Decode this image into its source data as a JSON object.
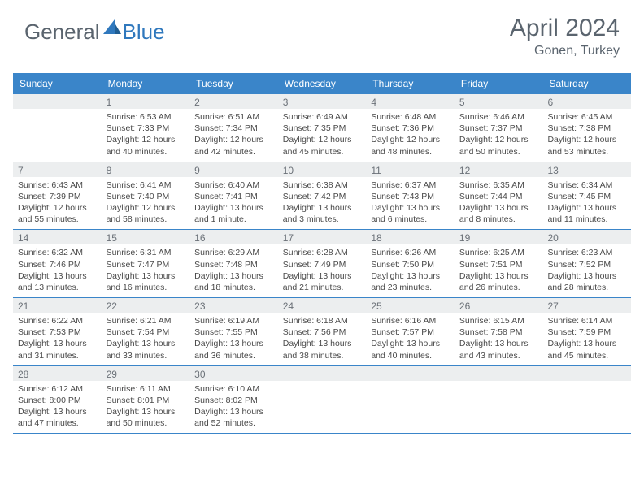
{
  "logo": {
    "text1": "General",
    "text2": "Blue"
  },
  "title": "April 2024",
  "location": "Gonen, Turkey",
  "colors": {
    "header_bg": "#3a85c9",
    "header_text": "#ffffff",
    "daynum_bg": "#eceeef",
    "daynum_text": "#6b7178",
    "body_text": "#4a4a4a",
    "divider": "#3a85c9",
    "logo_gray": "#5a646e",
    "logo_blue": "#2f78bd"
  },
  "day_names": [
    "Sunday",
    "Monday",
    "Tuesday",
    "Wednesday",
    "Thursday",
    "Friday",
    "Saturday"
  ],
  "weeks": [
    [
      {
        "n": "",
        "sr": "",
        "ss": "",
        "dl": ""
      },
      {
        "n": "1",
        "sr": "Sunrise: 6:53 AM",
        "ss": "Sunset: 7:33 PM",
        "dl": "Daylight: 12 hours and 40 minutes."
      },
      {
        "n": "2",
        "sr": "Sunrise: 6:51 AM",
        "ss": "Sunset: 7:34 PM",
        "dl": "Daylight: 12 hours and 42 minutes."
      },
      {
        "n": "3",
        "sr": "Sunrise: 6:49 AM",
        "ss": "Sunset: 7:35 PM",
        "dl": "Daylight: 12 hours and 45 minutes."
      },
      {
        "n": "4",
        "sr": "Sunrise: 6:48 AM",
        "ss": "Sunset: 7:36 PM",
        "dl": "Daylight: 12 hours and 48 minutes."
      },
      {
        "n": "5",
        "sr": "Sunrise: 6:46 AM",
        "ss": "Sunset: 7:37 PM",
        "dl": "Daylight: 12 hours and 50 minutes."
      },
      {
        "n": "6",
        "sr": "Sunrise: 6:45 AM",
        "ss": "Sunset: 7:38 PM",
        "dl": "Daylight: 12 hours and 53 minutes."
      }
    ],
    [
      {
        "n": "7",
        "sr": "Sunrise: 6:43 AM",
        "ss": "Sunset: 7:39 PM",
        "dl": "Daylight: 12 hours and 55 minutes."
      },
      {
        "n": "8",
        "sr": "Sunrise: 6:41 AM",
        "ss": "Sunset: 7:40 PM",
        "dl": "Daylight: 12 hours and 58 minutes."
      },
      {
        "n": "9",
        "sr": "Sunrise: 6:40 AM",
        "ss": "Sunset: 7:41 PM",
        "dl": "Daylight: 13 hours and 1 minute."
      },
      {
        "n": "10",
        "sr": "Sunrise: 6:38 AM",
        "ss": "Sunset: 7:42 PM",
        "dl": "Daylight: 13 hours and 3 minutes."
      },
      {
        "n": "11",
        "sr": "Sunrise: 6:37 AM",
        "ss": "Sunset: 7:43 PM",
        "dl": "Daylight: 13 hours and 6 minutes."
      },
      {
        "n": "12",
        "sr": "Sunrise: 6:35 AM",
        "ss": "Sunset: 7:44 PM",
        "dl": "Daylight: 13 hours and 8 minutes."
      },
      {
        "n": "13",
        "sr": "Sunrise: 6:34 AM",
        "ss": "Sunset: 7:45 PM",
        "dl": "Daylight: 13 hours and 11 minutes."
      }
    ],
    [
      {
        "n": "14",
        "sr": "Sunrise: 6:32 AM",
        "ss": "Sunset: 7:46 PM",
        "dl": "Daylight: 13 hours and 13 minutes."
      },
      {
        "n": "15",
        "sr": "Sunrise: 6:31 AM",
        "ss": "Sunset: 7:47 PM",
        "dl": "Daylight: 13 hours and 16 minutes."
      },
      {
        "n": "16",
        "sr": "Sunrise: 6:29 AM",
        "ss": "Sunset: 7:48 PM",
        "dl": "Daylight: 13 hours and 18 minutes."
      },
      {
        "n": "17",
        "sr": "Sunrise: 6:28 AM",
        "ss": "Sunset: 7:49 PM",
        "dl": "Daylight: 13 hours and 21 minutes."
      },
      {
        "n": "18",
        "sr": "Sunrise: 6:26 AM",
        "ss": "Sunset: 7:50 PM",
        "dl": "Daylight: 13 hours and 23 minutes."
      },
      {
        "n": "19",
        "sr": "Sunrise: 6:25 AM",
        "ss": "Sunset: 7:51 PM",
        "dl": "Daylight: 13 hours and 26 minutes."
      },
      {
        "n": "20",
        "sr": "Sunrise: 6:23 AM",
        "ss": "Sunset: 7:52 PM",
        "dl": "Daylight: 13 hours and 28 minutes."
      }
    ],
    [
      {
        "n": "21",
        "sr": "Sunrise: 6:22 AM",
        "ss": "Sunset: 7:53 PM",
        "dl": "Daylight: 13 hours and 31 minutes."
      },
      {
        "n": "22",
        "sr": "Sunrise: 6:21 AM",
        "ss": "Sunset: 7:54 PM",
        "dl": "Daylight: 13 hours and 33 minutes."
      },
      {
        "n": "23",
        "sr": "Sunrise: 6:19 AM",
        "ss": "Sunset: 7:55 PM",
        "dl": "Daylight: 13 hours and 36 minutes."
      },
      {
        "n": "24",
        "sr": "Sunrise: 6:18 AM",
        "ss": "Sunset: 7:56 PM",
        "dl": "Daylight: 13 hours and 38 minutes."
      },
      {
        "n": "25",
        "sr": "Sunrise: 6:16 AM",
        "ss": "Sunset: 7:57 PM",
        "dl": "Daylight: 13 hours and 40 minutes."
      },
      {
        "n": "26",
        "sr": "Sunrise: 6:15 AM",
        "ss": "Sunset: 7:58 PM",
        "dl": "Daylight: 13 hours and 43 minutes."
      },
      {
        "n": "27",
        "sr": "Sunrise: 6:14 AM",
        "ss": "Sunset: 7:59 PM",
        "dl": "Daylight: 13 hours and 45 minutes."
      }
    ],
    [
      {
        "n": "28",
        "sr": "Sunrise: 6:12 AM",
        "ss": "Sunset: 8:00 PM",
        "dl": "Daylight: 13 hours and 47 minutes."
      },
      {
        "n": "29",
        "sr": "Sunrise: 6:11 AM",
        "ss": "Sunset: 8:01 PM",
        "dl": "Daylight: 13 hours and 50 minutes."
      },
      {
        "n": "30",
        "sr": "Sunrise: 6:10 AM",
        "ss": "Sunset: 8:02 PM",
        "dl": "Daylight: 13 hours and 52 minutes."
      },
      {
        "n": "",
        "sr": "",
        "ss": "",
        "dl": ""
      },
      {
        "n": "",
        "sr": "",
        "ss": "",
        "dl": ""
      },
      {
        "n": "",
        "sr": "",
        "ss": "",
        "dl": ""
      },
      {
        "n": "",
        "sr": "",
        "ss": "",
        "dl": ""
      }
    ]
  ]
}
